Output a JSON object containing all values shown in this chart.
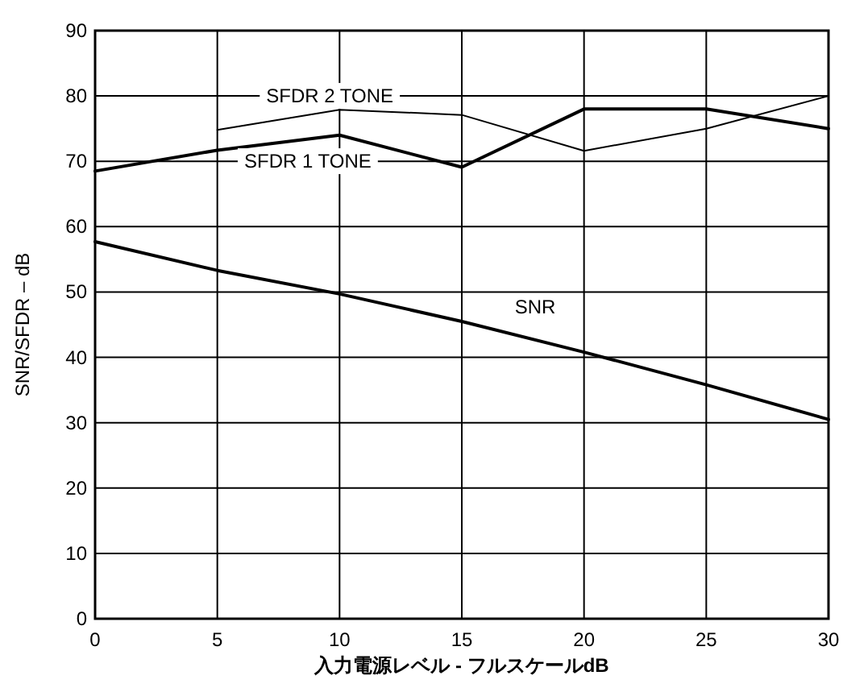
{
  "chart_data": {
    "type": "line",
    "xlabel": "入力電源レベル - フルスケールdB",
    "ylabel": "SNR/SFDR – dB",
    "x": [
      0,
      5,
      10,
      15,
      20,
      25,
      30
    ],
    "xlim": [
      0,
      30
    ],
    "xticks": [
      0,
      5,
      10,
      15,
      20,
      25,
      30
    ],
    "ylim": [
      0,
      90
    ],
    "yticks": [
      0,
      10,
      20,
      30,
      40,
      50,
      60,
      70,
      80,
      90
    ],
    "grid": true,
    "legend": false,
    "marker": "none",
    "line_style": "solid",
    "series": [
      {
        "name": "SFDR 1 TONE",
        "color": "#000000",
        "values": [
          68.5,
          71.7,
          74.0,
          69.1,
          78.0,
          78.0,
          75.0
        ]
      },
      {
        "name": "SFDR 2 TONE",
        "color": "#000000",
        "values": [
          null,
          74.8,
          77.9,
          77.1,
          71.6,
          75.0,
          80.0
        ]
      },
      {
        "name": "SNR",
        "color": "#000000",
        "values": [
          57.7,
          53.3,
          49.7,
          45.5,
          40.8,
          35.8,
          30.5
        ]
      }
    ]
  }
}
